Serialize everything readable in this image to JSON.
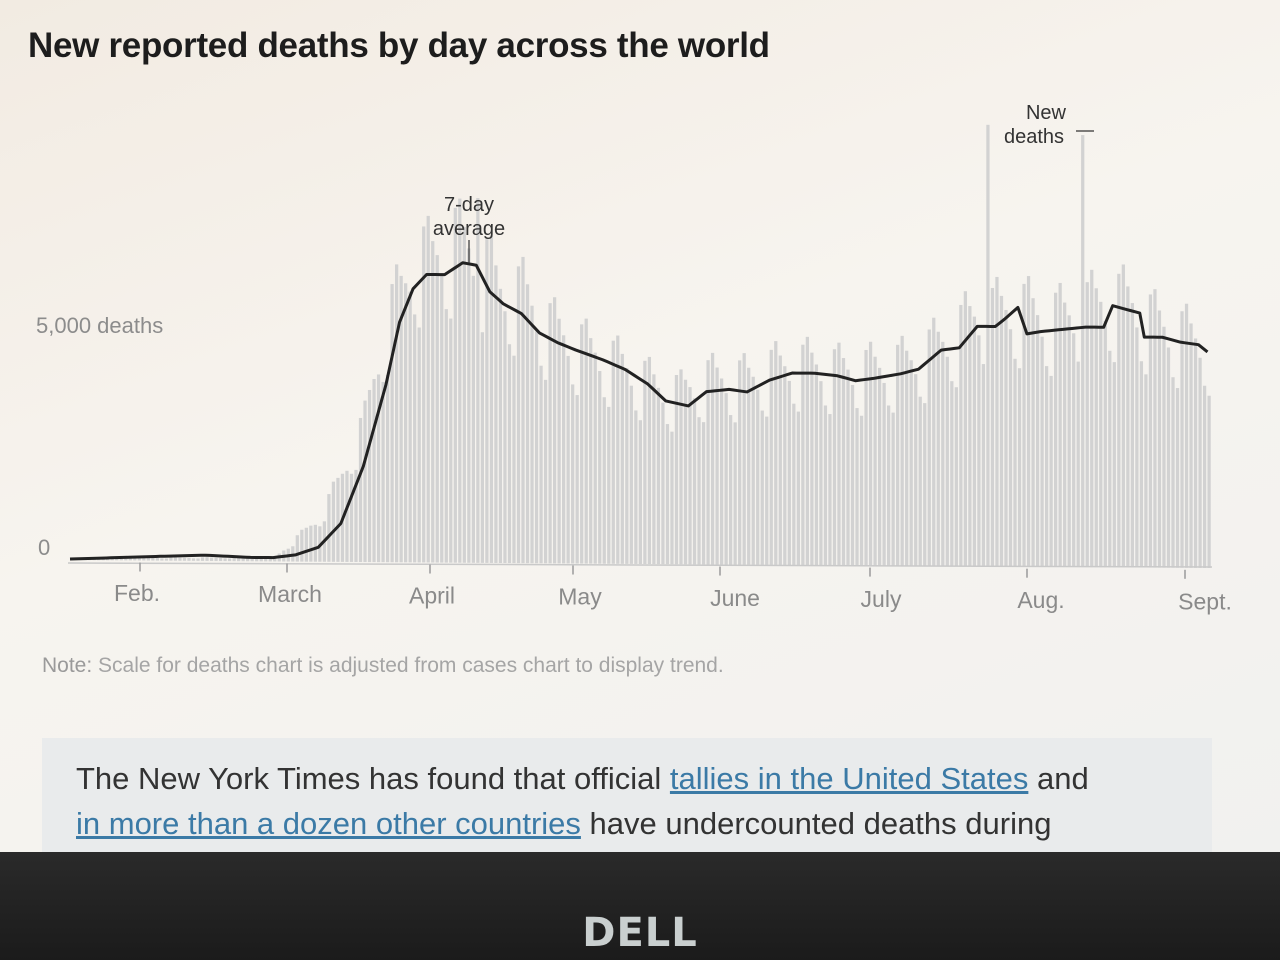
{
  "chart_data": {
    "type": "bar",
    "title": "New reported deaths by day across the world",
    "y_tick_labels": [
      "0",
      "5,000 deaths"
    ],
    "y_ticks": [
      0,
      5000
    ],
    "ylim": [
      0,
      7800
    ],
    "x_tick_labels": [
      "Feb.",
      "March",
      "April",
      "May",
      "June",
      "July",
      "Aug.",
      "Sept."
    ],
    "grid": false,
    "series": [
      {
        "name": "New deaths",
        "kind": "bar",
        "color": "#d2d2d2"
      },
      {
        "name": "7-day average",
        "kind": "line",
        "color": "#222222"
      }
    ],
    "avg_keyframes": [
      [
        0,
        20
      ],
      [
        20,
        90
      ],
      [
        30,
        120
      ],
      [
        40,
        80
      ],
      [
        45,
        80
      ],
      [
        50,
        140
      ],
      [
        55,
        300
      ],
      [
        60,
        800
      ],
      [
        65,
        2000
      ],
      [
        70,
        3700
      ],
      [
        73,
        5000
      ],
      [
        76,
        5700
      ],
      [
        79,
        6000
      ],
      [
        83,
        6000
      ],
      [
        87,
        6250
      ],
      [
        90,
        6200
      ],
      [
        93,
        5650
      ],
      [
        96,
        5400
      ],
      [
        100,
        5200
      ],
      [
        104,
        4800
      ],
      [
        108,
        4600
      ],
      [
        112,
        4450
      ],
      [
        118,
        4250
      ],
      [
        123,
        4050
      ],
      [
        128,
        3750
      ],
      [
        132,
        3400
      ],
      [
        137,
        3300
      ],
      [
        141,
        3600
      ],
      [
        146,
        3650
      ],
      [
        150,
        3600
      ],
      [
        155,
        3850
      ],
      [
        160,
        4000
      ],
      [
        165,
        4000
      ],
      [
        170,
        3950
      ],
      [
        174,
        3850
      ],
      [
        178,
        3900
      ],
      [
        184,
        4000
      ],
      [
        188,
        4100
      ],
      [
        193,
        4500
      ],
      [
        197,
        4550
      ],
      [
        201,
        5000
      ],
      [
        205,
        5000
      ],
      [
        207,
        5150
      ],
      [
        210,
        5400
      ],
      [
        212,
        4850
      ],
      [
        215,
        4900
      ],
      [
        220,
        4950
      ],
      [
        225,
        5000
      ],
      [
        229,
        5000
      ],
      [
        231,
        5450
      ],
      [
        235,
        5350
      ],
      [
        237,
        5300
      ],
      [
        238,
        4800
      ],
      [
        242,
        4800
      ],
      [
        246,
        4700
      ],
      [
        250,
        4650
      ],
      [
        252,
        4500
      ]
    ],
    "daily_keyframes": [
      [
        0,
        40
      ],
      [
        45,
        80
      ],
      [
        55,
        900
      ],
      [
        60,
        1800
      ],
      [
        65,
        2900
      ],
      [
        70,
        5000
      ],
      [
        74,
        5700
      ],
      [
        76,
        6300
      ],
      [
        80,
        6200
      ],
      [
        85,
        6600
      ],
      [
        90,
        6300
      ],
      [
        95,
        5600
      ],
      [
        100,
        5500
      ],
      [
        105,
        4900
      ],
      [
        110,
        4600
      ],
      [
        115,
        4350
      ],
      [
        120,
        4150
      ],
      [
        125,
        3900
      ],
      [
        130,
        3600
      ],
      [
        135,
        3500
      ],
      [
        140,
        3800
      ],
      [
        145,
        3800
      ],
      [
        150,
        3800
      ],
      [
        155,
        4000
      ],
      [
        160,
        4100
      ],
      [
        165,
        4100
      ],
      [
        170,
        4000
      ],
      [
        175,
        4000
      ],
      [
        180,
        4050
      ],
      [
        185,
        4150
      ],
      [
        190,
        4400
      ],
      [
        195,
        4700
      ],
      [
        200,
        5100
      ],
      [
        205,
        5200
      ],
      [
        210,
        5300
      ],
      [
        215,
        5100
      ],
      [
        220,
        5100
      ],
      [
        225,
        5300
      ],
      [
        230,
        5500
      ],
      [
        235,
        5400
      ],
      [
        240,
        5000
      ],
      [
        245,
        4800
      ],
      [
        252,
        4600
      ]
    ],
    "weekly_dips": [
      -0.22,
      0.12,
      0.16,
      0.08,
      0.02,
      -0.06,
      -0.18
    ],
    "spikes": [
      [
        203,
        9200
      ],
      [
        224,
        9000
      ],
      [
        90,
        7600
      ]
    ],
    "annotations": {
      "average_label": [
        "7-day",
        "average"
      ],
      "daily_label": [
        "New",
        "deaths"
      ]
    },
    "note_key": "Note:",
    "note_text": "Scale for deaths chart is adjusted from cases chart to display trend."
  },
  "article": {
    "text_1": "The New York Times has found that official ",
    "link_1": "tallies in the United States",
    "text_2": " and ",
    "link_2": "in more than a dozen other countries",
    "text_3": " have undercounted deaths during"
  },
  "bezel": {
    "brand": "DELL"
  }
}
